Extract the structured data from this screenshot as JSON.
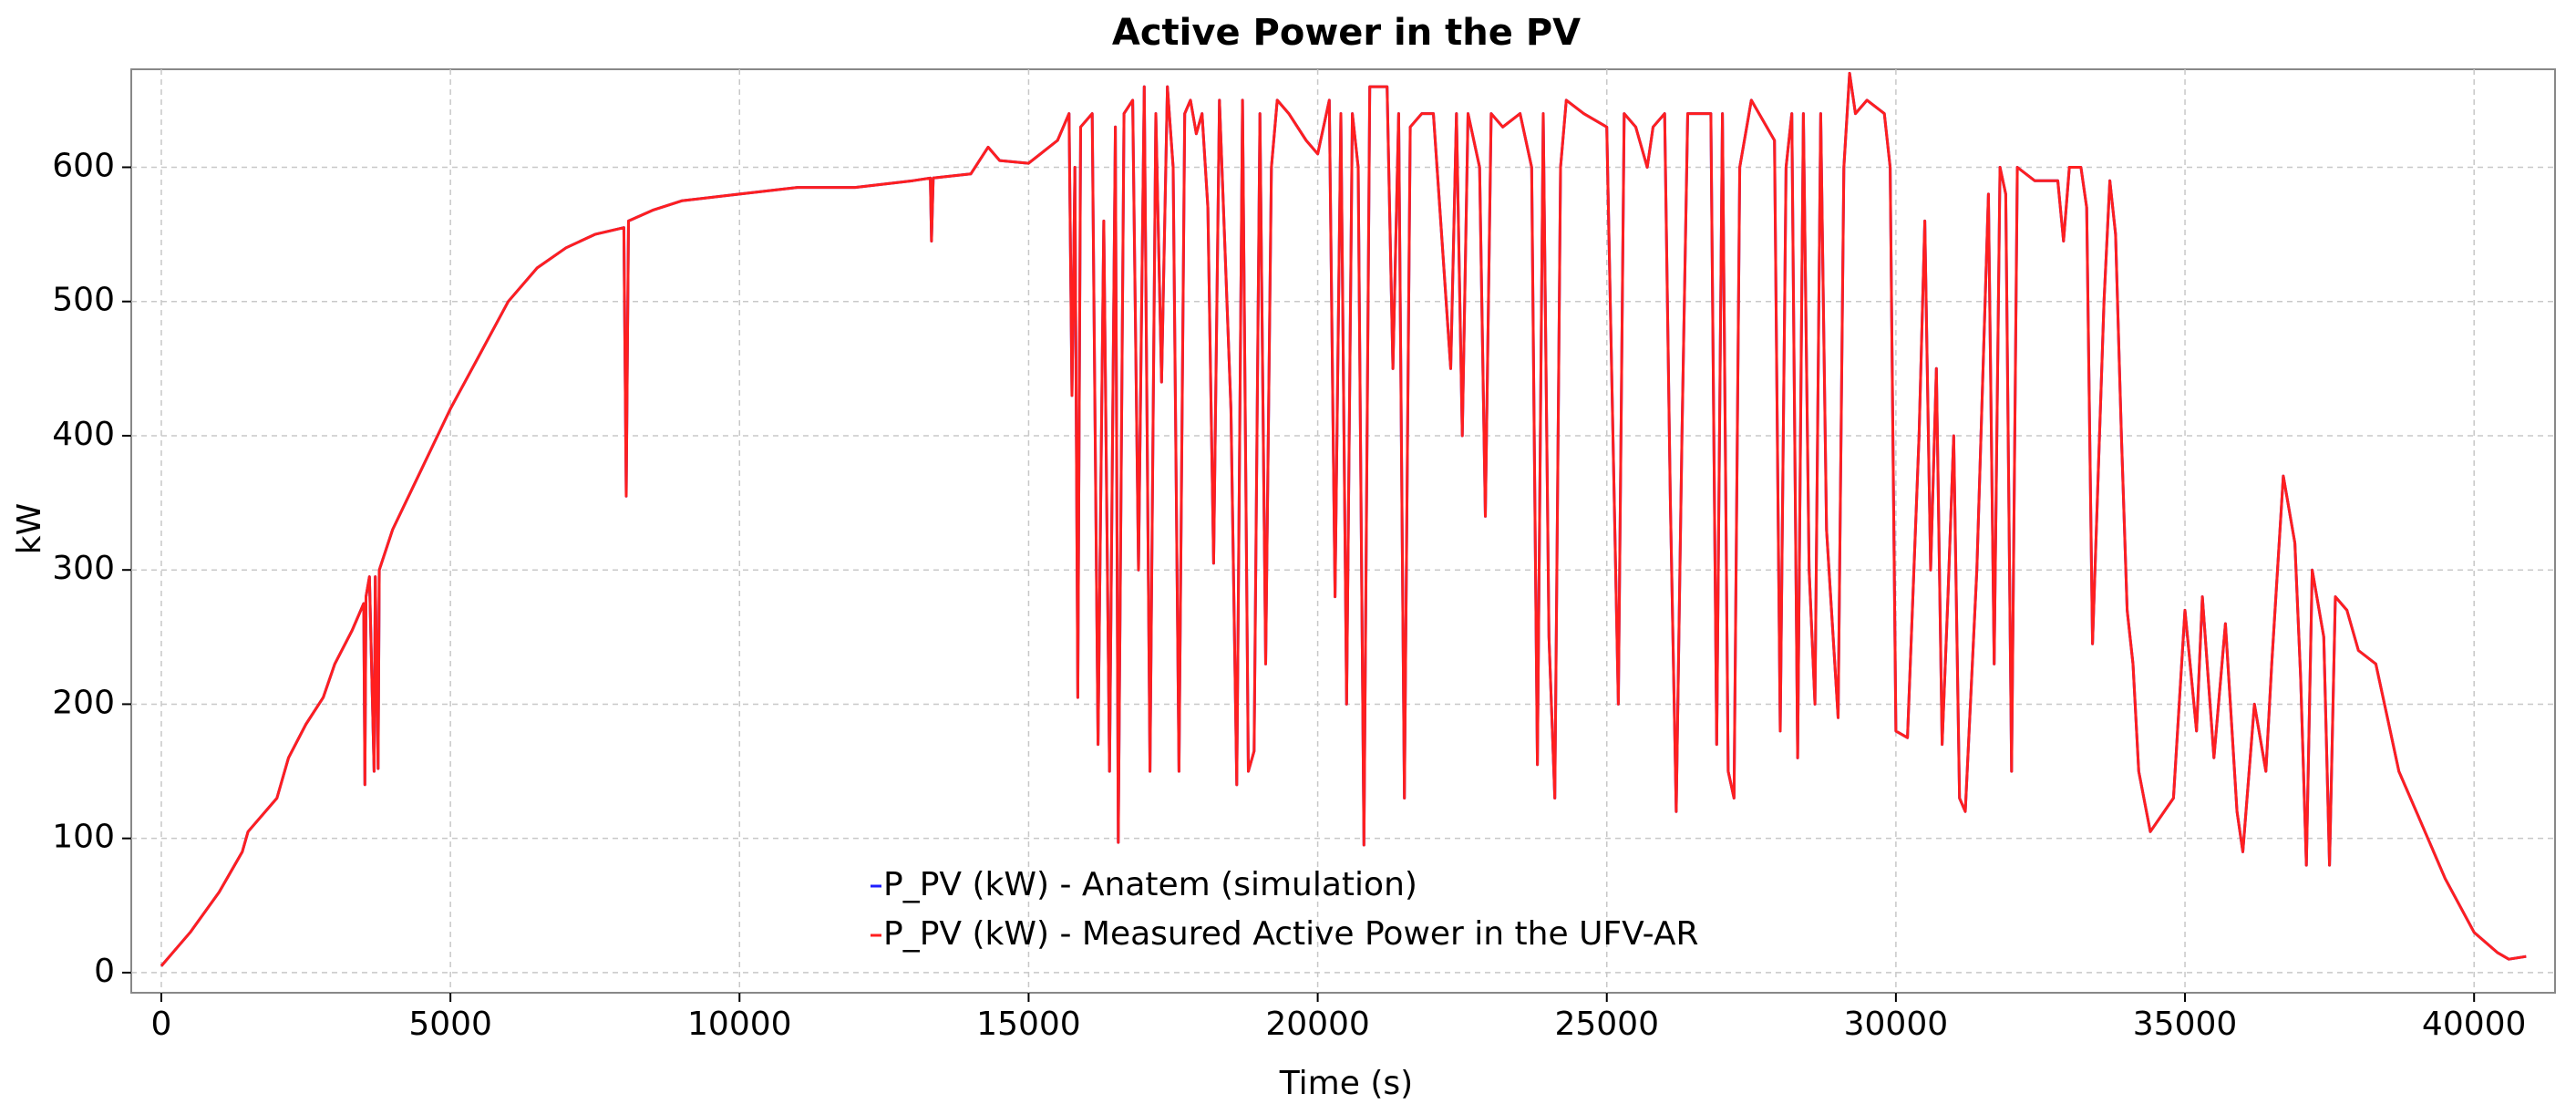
{
  "chart_data": {
    "type": "line",
    "title": "Active Power in the PV",
    "xlabel": "Time (s)",
    "ylabel": "kW",
    "xlim": [
      -520,
      41400
    ],
    "ylim": [
      -15,
      673
    ],
    "xticks": [
      0,
      5000,
      10000,
      15000,
      20000,
      25000,
      30000,
      35000,
      40000
    ],
    "yticks": [
      0,
      100,
      200,
      300,
      400,
      500,
      600
    ],
    "grid": true,
    "legend": "lower center",
    "x": [
      0,
      200,
      500,
      1000,
      1400,
      1500,
      2000,
      2200,
      2500,
      2800,
      3000,
      3300,
      3500,
      3520,
      3540,
      3600,
      3680,
      3700,
      3750,
      3770,
      4000,
      4500,
      5000,
      5500,
      6000,
      6500,
      7000,
      7500,
      8000,
      8040,
      8080,
      8500,
      9000,
      10000,
      11000,
      12000,
      13000,
      13300,
      13320,
      13350,
      14000,
      14300,
      14500,
      15000,
      15500,
      15700,
      15750,
      15800,
      15850,
      15900,
      16100,
      16200,
      16300,
      16400,
      16500,
      16550,
      16650,
      16800,
      16900,
      17000,
      17100,
      17200,
      17300,
      17400,
      17500,
      17600,
      17700,
      17800,
      17900,
      18000,
      18100,
      18200,
      18300,
      18500,
      18600,
      18700,
      18800,
      18900,
      19000,
      19100,
      19200,
      19300,
      19500,
      19800,
      20000,
      20200,
      20300,
      20400,
      20500,
      20600,
      20700,
      20800,
      20900,
      21200,
      21300,
      21400,
      21500,
      21600,
      21800,
      22000,
      22300,
      22400,
      22500,
      22600,
      22800,
      22900,
      23000,
      23200,
      23500,
      23700,
      23800,
      23900,
      24000,
      24100,
      24200,
      24300,
      24600,
      25000,
      25200,
      25300,
      25500,
      25700,
      25800,
      26000,
      26100,
      26200,
      26300,
      26400,
      26800,
      26900,
      27000,
      27100,
      27200,
      27300,
      27500,
      27900,
      28000,
      28100,
      28200,
      28300,
      28400,
      28500,
      28600,
      28700,
      28800,
      29000,
      29100,
      29200,
      29300,
      29500,
      29800,
      29900,
      30000,
      30200,
      30400,
      30500,
      30600,
      30700,
      30800,
      30900,
      31000,
      31100,
      31200,
      31400,
      31600,
      31700,
      31800,
      31900,
      32000,
      32100,
      32400,
      32800,
      32900,
      33000,
      33200,
      33300,
      33400,
      33600,
      33700,
      33800,
      33900,
      34000,
      34100,
      34200,
      34400,
      34800,
      35000,
      35200,
      35300,
      35500,
      35700,
      35900,
      36000,
      36200,
      36400,
      36500,
      36700,
      36900,
      37000,
      37100,
      37200,
      37400,
      37500,
      37600,
      37800,
      38000,
      38300,
      38500,
      38700,
      39000,
      39500,
      40000,
      40400,
      40600,
      40900
    ],
    "series": [
      {
        "name": "P_PV (kW) - Anatem (simulation)",
        "color": "#1f1fff",
        "values": [
          5,
          15,
          30,
          60,
          90,
          105,
          130,
          160,
          185,
          205,
          230,
          255,
          275,
          140,
          280,
          295,
          150,
          295,
          152,
          300,
          330,
          375,
          420,
          460,
          500,
          525,
          540,
          550,
          555,
          355,
          560,
          568,
          575,
          580,
          585,
          585,
          590,
          592,
          545,
          592,
          595,
          615,
          605,
          603,
          620,
          640,
          430,
          600,
          205,
          630,
          640,
          170,
          560,
          150,
          630,
          97,
          640,
          650,
          300,
          660,
          150,
          640,
          440,
          660,
          600,
          150,
          640,
          650,
          625,
          640,
          570,
          305,
          650,
          420,
          140,
          650,
          150,
          165,
          640,
          230,
          600,
          650,
          640,
          620,
          610,
          650,
          280,
          640,
          200,
          640,
          600,
          95,
          660,
          660,
          450,
          640,
          130,
          630,
          640,
          640,
          450,
          640,
          400,
          640,
          600,
          340,
          640,
          630,
          640,
          600,
          155,
          640,
          250,
          130,
          600,
          650,
          640,
          630,
          200,
          640,
          630,
          600,
          630,
          640,
          350,
          120,
          400,
          640,
          640,
          170,
          640,
          150,
          130,
          600,
          650,
          620,
          180,
          600,
          640,
          160,
          640,
          300,
          200,
          640,
          330,
          190,
          600,
          670,
          640,
          650,
          640,
          600,
          180,
          175,
          400,
          560,
          300,
          450,
          170,
          280,
          400,
          130,
          120,
          300,
          580,
          230,
          600,
          580,
          150,
          600,
          590,
          590,
          545,
          600,
          600,
          570,
          245,
          500,
          590,
          550,
          400,
          270,
          230,
          150,
          105,
          130,
          270,
          180,
          280,
          160,
          260,
          120,
          90,
          200,
          150,
          230,
          370,
          320,
          220,
          80,
          300,
          250,
          80,
          280,
          270,
          240,
          230,
          190,
          150,
          120,
          70,
          30,
          15,
          10,
          12
        ]
      },
      {
        "name": "P_PV (kW) - Measured Active Power in the UFV-AR",
        "color": "#ff1f1f",
        "values": [
          5,
          15,
          30,
          60,
          90,
          105,
          130,
          160,
          185,
          205,
          230,
          255,
          275,
          140,
          280,
          295,
          150,
          295,
          152,
          300,
          330,
          375,
          420,
          460,
          500,
          525,
          540,
          550,
          555,
          355,
          560,
          568,
          575,
          580,
          585,
          585,
          590,
          592,
          545,
          592,
          595,
          615,
          605,
          603,
          620,
          640,
          430,
          600,
          205,
          630,
          640,
          170,
          560,
          150,
          630,
          97,
          640,
          650,
          300,
          660,
          150,
          640,
          440,
          660,
          600,
          150,
          640,
          650,
          625,
          640,
          570,
          305,
          650,
          420,
          140,
          650,
          150,
          165,
          640,
          230,
          600,
          650,
          640,
          620,
          610,
          650,
          280,
          640,
          200,
          640,
          600,
          95,
          660,
          660,
          450,
          640,
          130,
          630,
          640,
          640,
          450,
          640,
          400,
          640,
          600,
          340,
          640,
          630,
          640,
          600,
          155,
          640,
          250,
          130,
          600,
          650,
          640,
          630,
          200,
          640,
          630,
          600,
          630,
          640,
          350,
          120,
          400,
          640,
          640,
          170,
          640,
          150,
          130,
          600,
          650,
          620,
          180,
          600,
          640,
          160,
          640,
          300,
          200,
          640,
          330,
          190,
          600,
          670,
          640,
          650,
          640,
          600,
          180,
          175,
          400,
          560,
          300,
          450,
          170,
          280,
          400,
          130,
          120,
          300,
          580,
          230,
          600,
          580,
          150,
          600,
          590,
          590,
          545,
          600,
          600,
          570,
          245,
          500,
          590,
          550,
          400,
          270,
          230,
          150,
          105,
          130,
          270,
          180,
          280,
          160,
          260,
          120,
          90,
          200,
          150,
          230,
          370,
          320,
          220,
          80,
          300,
          250,
          80,
          280,
          270,
          240,
          230,
          190,
          150,
          120,
          70,
          30,
          15,
          10,
          12
        ]
      }
    ]
  }
}
